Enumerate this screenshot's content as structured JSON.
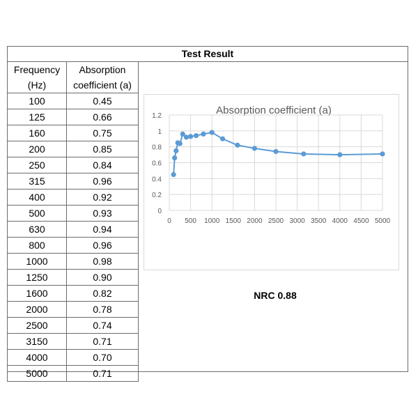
{
  "table": {
    "title": "Test Result",
    "headers": {
      "frequency_line1": "Frequency",
      "frequency_line2": "(Hz)",
      "absorption_line1": "Absorption",
      "absorption_line2": "coefficient (a)"
    },
    "rows": [
      {
        "freq": "100",
        "coef": "0.45"
      },
      {
        "freq": "125",
        "coef": "0.66"
      },
      {
        "freq": "160",
        "coef": "0.75"
      },
      {
        "freq": "200",
        "coef": "0.85"
      },
      {
        "freq": "250",
        "coef": "0.84"
      },
      {
        "freq": "315",
        "coef": "0.96"
      },
      {
        "freq": "400",
        "coef": "0.92"
      },
      {
        "freq": "500",
        "coef": "0.93"
      },
      {
        "freq": "630",
        "coef": "0.94"
      },
      {
        "freq": "800",
        "coef": "0.96"
      },
      {
        "freq": "1000",
        "coef": "0.98"
      },
      {
        "freq": "1250",
        "coef": "0.90"
      },
      {
        "freq": "1600",
        "coef": "0.82"
      },
      {
        "freq": "2000",
        "coef": "0.78"
      },
      {
        "freq": "2500",
        "coef": "0.74"
      },
      {
        "freq": "3150",
        "coef": "0.71"
      },
      {
        "freq": "4000",
        "coef": "0.70"
      },
      {
        "freq": "5000",
        "coef": "0.71"
      }
    ]
  },
  "nrc_label": "NRC 0.88",
  "chart_data": {
    "type": "scatter",
    "title": "Absorption coefficient (a)",
    "xlabel": "",
    "ylabel": "",
    "xlim": [
      0,
      5000
    ],
    "ylim": [
      0,
      1.2
    ],
    "x_ticks": [
      "0",
      "500",
      "1000",
      "1500",
      "2000",
      "2500",
      "3000",
      "3500",
      "4000",
      "4500",
      "5000"
    ],
    "y_ticks": [
      "0",
      "0.2",
      "0.4",
      "0.6",
      "0.8",
      "1",
      "1.2"
    ],
    "grid": true,
    "legend": "none",
    "series_color": "#5b9bd5",
    "series": [
      {
        "x": [
          100,
          125,
          160,
          200,
          250,
          315,
          400,
          500,
          630,
          800,
          1000,
          1250,
          1600,
          2000,
          2500,
          3150,
          4000,
          5000
        ],
        "y": [
          0.45,
          0.66,
          0.75,
          0.85,
          0.84,
          0.96,
          0.92,
          0.93,
          0.94,
          0.96,
          0.98,
          0.9,
          0.82,
          0.78,
          0.74,
          0.71,
          0.7,
          0.71
        ]
      }
    ]
  }
}
